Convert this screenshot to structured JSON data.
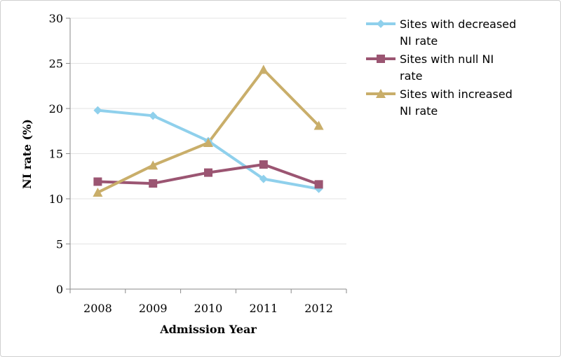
{
  "chart_data": {
    "type": "line",
    "categories": [
      "2008",
      "2009",
      "2010",
      "2011",
      "2012"
    ],
    "series": [
      {
        "name": "Sites with decreased NI rate",
        "name_lines": [
          "Sites with decreased",
          "NI rate"
        ],
        "values": [
          19.8,
          19.2,
          16.4,
          12.2,
          11.1
        ],
        "color": "#8fd0ec",
        "marker": "diamond"
      },
      {
        "name": "Sites with null NI rate",
        "name_lines": [
          "Sites with null NI",
          "rate"
        ],
        "values": [
          11.9,
          11.7,
          12.9,
          13.8,
          11.6
        ],
        "color": "#9b5572",
        "marker": "square"
      },
      {
        "name": "Sites with increased NI rate",
        "name_lines": [
          "Sites with increased",
          "NI rate"
        ],
        "values": [
          10.7,
          13.7,
          16.2,
          24.3,
          18.1
        ],
        "color": "#c9ae6a",
        "marker": "triangle"
      }
    ],
    "xlabel": "Admission Year",
    "ylabel": "NI rate (%)",
    "ylim": [
      0,
      30
    ],
    "yticks": [
      0,
      5,
      10,
      15,
      20,
      25,
      30
    ],
    "grid": true,
    "legend": "right"
  }
}
